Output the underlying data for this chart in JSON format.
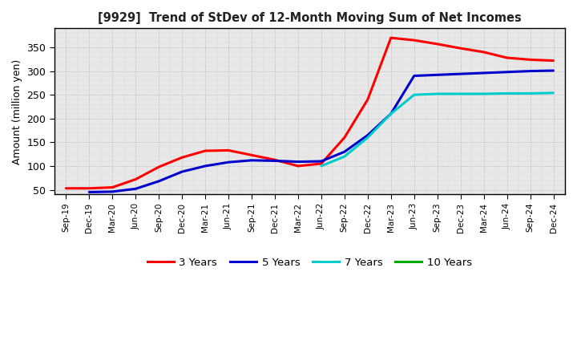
{
  "title": "[9929]  Trend of StDev of 12-Month Moving Sum of Net Incomes",
  "ylabel": "Amount (million yen)",
  "background_color": "#ffffff",
  "plot_bg_color": "#e8e8e8",
  "grid_color": "#888888",
  "ylim": [
    40,
    390
  ],
  "yticks": [
    50,
    100,
    150,
    200,
    250,
    300,
    350
  ],
  "xtick_labels": [
    "Sep-19",
    "Dec-19",
    "Mar-20",
    "Jun-20",
    "Sep-20",
    "Dec-20",
    "Mar-21",
    "Jun-21",
    "Sep-21",
    "Dec-21",
    "Mar-22",
    "Jun-22",
    "Sep-22",
    "Dec-22",
    "Mar-23",
    "Jun-23",
    "Sep-23",
    "Dec-23",
    "Mar-24",
    "Jun-24",
    "Sep-24",
    "Dec-24"
  ],
  "series_3y": [
    53,
    53,
    55,
    72,
    98,
    118,
    132,
    133,
    123,
    113,
    100,
    105,
    160,
    240,
    370,
    365,
    357,
    348,
    340,
    328,
    324,
    322
  ],
  "series_5y": [
    null,
    45,
    46,
    52,
    68,
    88,
    100,
    108,
    112,
    111,
    109,
    110,
    130,
    165,
    210,
    290,
    292,
    294,
    296,
    298,
    300,
    301
  ],
  "series_7y": [
    null,
    null,
    null,
    null,
    null,
    null,
    null,
    null,
    null,
    null,
    null,
    100,
    120,
    160,
    210,
    250,
    252,
    252,
    252,
    253,
    253,
    254
  ],
  "series_10y": [
    null,
    null,
    null,
    null,
    null,
    null,
    null,
    null,
    null,
    null,
    null,
    null,
    null,
    null,
    null,
    null,
    null,
    null,
    null,
    null,
    null,
    null
  ],
  "color_3y": "#ff0000",
  "color_5y": "#0000cc",
  "color_7y": "#00cccc",
  "color_10y": "#00aa00",
  "lw": 2.2,
  "legend_labels": [
    "3 Years",
    "5 Years",
    "7 Years",
    "10 Years"
  ]
}
